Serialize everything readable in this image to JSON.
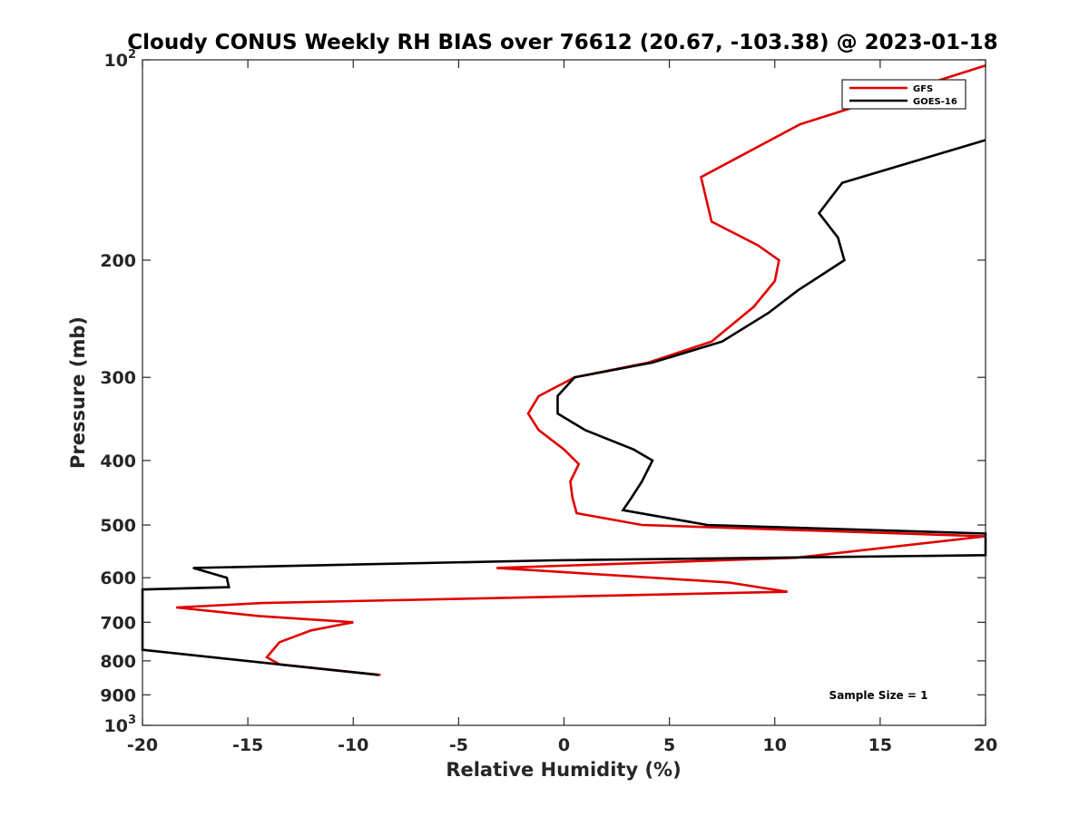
{
  "chart_data": {
    "type": "line",
    "title": "Cloudy CONUS Weekly RH BIAS over 76612 (20.67, -103.38) @ 2023-01-18",
    "xlabel": "Relative Humidity (%)",
    "ylabel": "Pressure (mb)",
    "xlim": [
      -20,
      20
    ],
    "ylim": [
      100,
      1000
    ],
    "yscale": "log",
    "yreversed": true,
    "x_ticks": [
      -20,
      -15,
      -10,
      -5,
      0,
      5,
      10,
      15,
      20
    ],
    "x_tick_labels": [
      "-20",
      "-15",
      "-10",
      "-5",
      "0",
      "5",
      "10",
      "15",
      "20"
    ],
    "y_ticks": [
      {
        "value": 100,
        "label": "10",
        "sup": "2"
      },
      {
        "value": 200,
        "label": "200"
      },
      {
        "value": 300,
        "label": "300"
      },
      {
        "value": 400,
        "label": "400"
      },
      {
        "value": 500,
        "label": "500"
      },
      {
        "value": 600,
        "label": "600"
      },
      {
        "value": 700,
        "label": "700"
      },
      {
        "value": 800,
        "label": "800"
      },
      {
        "value": 900,
        "label": "900"
      },
      {
        "value": 1000,
        "label": "10",
        "sup": "3"
      }
    ],
    "legend_position": "top-right",
    "annotation": "Sample Size = 1",
    "series": [
      {
        "name": "GFS",
        "color": "#e00000",
        "points": [
          [
            20,
            102
          ],
          [
            11.2,
            125
          ],
          [
            6.5,
            150
          ],
          [
            7.0,
            175
          ],
          [
            9.2,
            190
          ],
          [
            10.2,
            200
          ],
          [
            10.0,
            215
          ],
          [
            9.0,
            235
          ],
          [
            7.0,
            265
          ],
          [
            4.0,
            285
          ],
          [
            0.5,
            300
          ],
          [
            -1.2,
            320
          ],
          [
            -1.7,
            340
          ],
          [
            -1.2,
            360
          ],
          [
            0.0,
            385
          ],
          [
            0.7,
            405
          ],
          [
            0.3,
            430
          ],
          [
            0.4,
            455
          ],
          [
            0.6,
            480
          ],
          [
            3.7,
            500
          ],
          [
            20,
            520
          ],
          [
            11.0,
            560
          ],
          [
            -3.2,
            580
          ],
          [
            7.8,
            610
          ],
          [
            10.6,
            630
          ],
          [
            -14.3,
            655
          ],
          [
            -18.4,
            665
          ],
          [
            -14.5,
            685
          ],
          [
            -10.0,
            700
          ],
          [
            -12.0,
            720
          ],
          [
            -13.5,
            750
          ],
          [
            -14.1,
            790
          ],
          [
            -13.5,
            810
          ],
          [
            -8.7,
            840
          ]
        ]
      },
      {
        "name": "GOES-16",
        "color": "#000000",
        "points": [
          [
            20,
            132
          ],
          [
            13.2,
            153
          ],
          [
            12.1,
            170
          ],
          [
            13.0,
            185
          ],
          [
            13.3,
            200
          ],
          [
            11.1,
            222
          ],
          [
            9.7,
            240
          ],
          [
            7.5,
            265
          ],
          [
            4.2,
            285
          ],
          [
            0.5,
            300
          ],
          [
            -0.3,
            320
          ],
          [
            -0.3,
            340
          ],
          [
            1.0,
            360
          ],
          [
            3.3,
            385
          ],
          [
            4.2,
            400
          ],
          [
            3.7,
            430
          ],
          [
            3.2,
            455
          ],
          [
            2.8,
            475
          ],
          [
            6.8,
            500
          ],
          [
            20,
            515
          ],
          [
            20,
            555
          ],
          [
            -0.5,
            565
          ],
          [
            -17.6,
            580
          ],
          [
            -16.0,
            600
          ],
          [
            -15.9,
            620
          ],
          [
            -20,
            625
          ],
          [
            -20,
            770
          ],
          [
            -8.8,
            840
          ]
        ]
      }
    ]
  }
}
